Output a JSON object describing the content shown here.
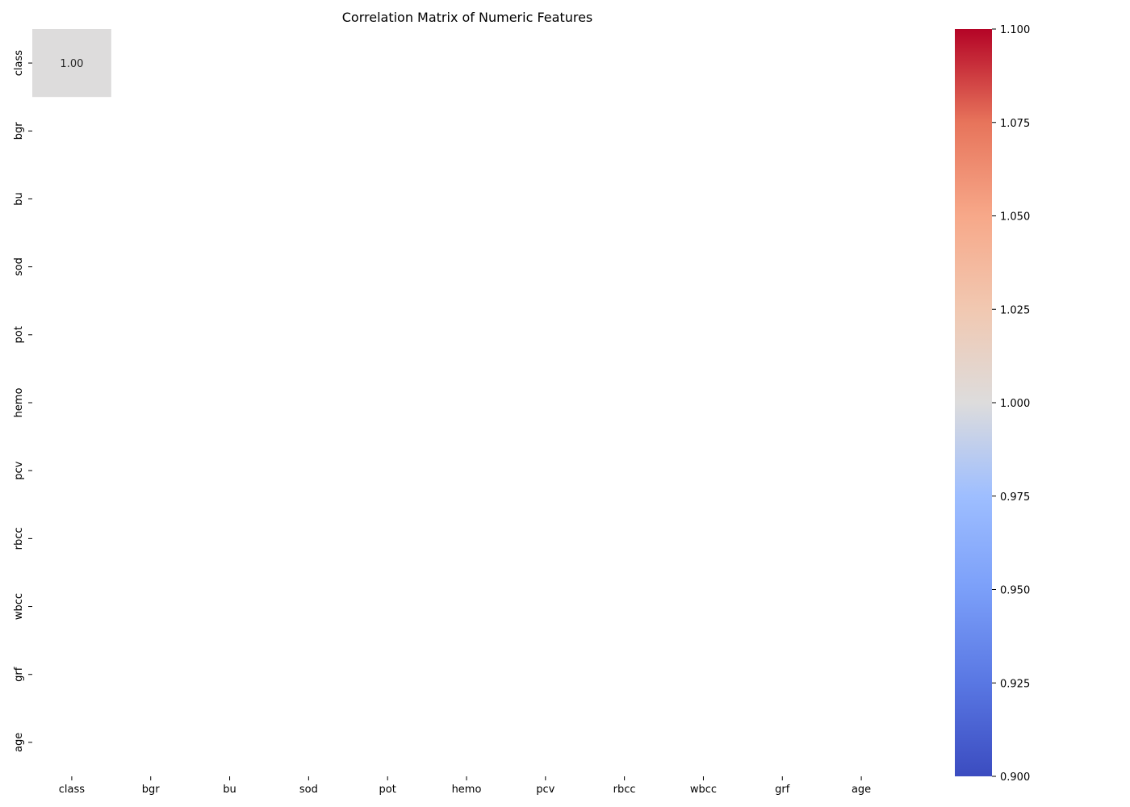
{
  "chart_data": {
    "type": "heatmap",
    "title": "Correlation Matrix of Numeric Features",
    "xlabel": "",
    "ylabel": "",
    "x_categories": [
      "class",
      "bgr",
      "bu",
      "sod",
      "pot",
      "hemo",
      "pcv",
      "rbcc",
      "wbcc",
      "grf",
      "age"
    ],
    "y_categories": [
      "class",
      "bgr",
      "bu",
      "sod",
      "pot",
      "hemo",
      "pcv",
      "rbcc",
      "wbcc",
      "grf",
      "age"
    ],
    "cells": [
      {
        "row": 0,
        "col": 0,
        "value": 1.0,
        "label": "1.00",
        "color": "#dddcdc"
      }
    ],
    "colorbar": {
      "colormap": "coolwarm",
      "range": [
        0.9,
        1.1
      ],
      "ticks": [
        0.9,
        0.925,
        0.95,
        0.975,
        1.0,
        1.025,
        1.05,
        1.075,
        1.1
      ],
      "tick_labels": [
        "0.900",
        "0.925",
        "0.950",
        "0.975",
        "1.000",
        "1.025",
        "1.050",
        "1.075",
        "1.100"
      ],
      "placement": "right"
    },
    "grid": false
  },
  "colors": {
    "background": "#ffffff",
    "text": "#000000",
    "annotation": "#262626"
  }
}
